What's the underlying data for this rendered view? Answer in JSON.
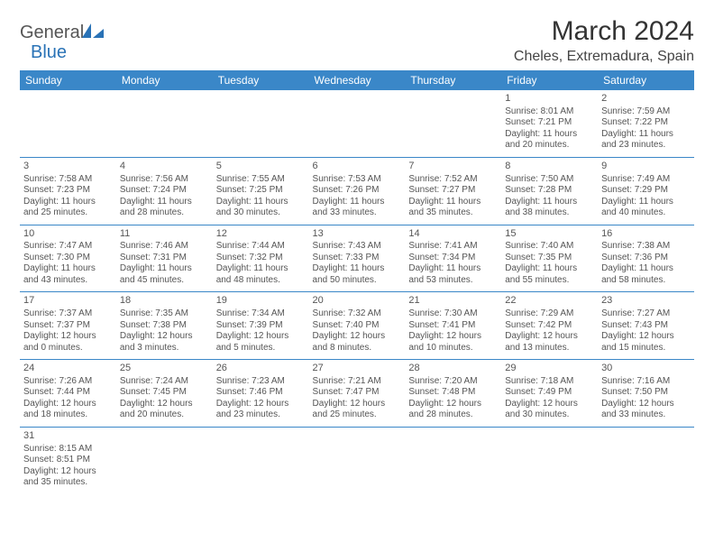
{
  "logo": {
    "text1": "General",
    "text2": "Blue"
  },
  "header": {
    "month": "March 2024",
    "location": "Cheles, Extremadura, Spain"
  },
  "colors": {
    "header_bg": "#3a87c8",
    "rule": "#3a87c8",
    "text": "#555555",
    "title": "#333333"
  },
  "daynames": [
    "Sunday",
    "Monday",
    "Tuesday",
    "Wednesday",
    "Thursday",
    "Friday",
    "Saturday"
  ],
  "weeks": [
    [
      null,
      null,
      null,
      null,
      null,
      {
        "n": "1",
        "sr": "Sunrise: 8:01 AM",
        "ss": "Sunset: 7:21 PM",
        "dl": "Daylight: 11 hours and 20 minutes."
      },
      {
        "n": "2",
        "sr": "Sunrise: 7:59 AM",
        "ss": "Sunset: 7:22 PM",
        "dl": "Daylight: 11 hours and 23 minutes."
      }
    ],
    [
      {
        "n": "3",
        "sr": "Sunrise: 7:58 AM",
        "ss": "Sunset: 7:23 PM",
        "dl": "Daylight: 11 hours and 25 minutes."
      },
      {
        "n": "4",
        "sr": "Sunrise: 7:56 AM",
        "ss": "Sunset: 7:24 PM",
        "dl": "Daylight: 11 hours and 28 minutes."
      },
      {
        "n": "5",
        "sr": "Sunrise: 7:55 AM",
        "ss": "Sunset: 7:25 PM",
        "dl": "Daylight: 11 hours and 30 minutes."
      },
      {
        "n": "6",
        "sr": "Sunrise: 7:53 AM",
        "ss": "Sunset: 7:26 PM",
        "dl": "Daylight: 11 hours and 33 minutes."
      },
      {
        "n": "7",
        "sr": "Sunrise: 7:52 AM",
        "ss": "Sunset: 7:27 PM",
        "dl": "Daylight: 11 hours and 35 minutes."
      },
      {
        "n": "8",
        "sr": "Sunrise: 7:50 AM",
        "ss": "Sunset: 7:28 PM",
        "dl": "Daylight: 11 hours and 38 minutes."
      },
      {
        "n": "9",
        "sr": "Sunrise: 7:49 AM",
        "ss": "Sunset: 7:29 PM",
        "dl": "Daylight: 11 hours and 40 minutes."
      }
    ],
    [
      {
        "n": "10",
        "sr": "Sunrise: 7:47 AM",
        "ss": "Sunset: 7:30 PM",
        "dl": "Daylight: 11 hours and 43 minutes."
      },
      {
        "n": "11",
        "sr": "Sunrise: 7:46 AM",
        "ss": "Sunset: 7:31 PM",
        "dl": "Daylight: 11 hours and 45 minutes."
      },
      {
        "n": "12",
        "sr": "Sunrise: 7:44 AM",
        "ss": "Sunset: 7:32 PM",
        "dl": "Daylight: 11 hours and 48 minutes."
      },
      {
        "n": "13",
        "sr": "Sunrise: 7:43 AM",
        "ss": "Sunset: 7:33 PM",
        "dl": "Daylight: 11 hours and 50 minutes."
      },
      {
        "n": "14",
        "sr": "Sunrise: 7:41 AM",
        "ss": "Sunset: 7:34 PM",
        "dl": "Daylight: 11 hours and 53 minutes."
      },
      {
        "n": "15",
        "sr": "Sunrise: 7:40 AM",
        "ss": "Sunset: 7:35 PM",
        "dl": "Daylight: 11 hours and 55 minutes."
      },
      {
        "n": "16",
        "sr": "Sunrise: 7:38 AM",
        "ss": "Sunset: 7:36 PM",
        "dl": "Daylight: 11 hours and 58 minutes."
      }
    ],
    [
      {
        "n": "17",
        "sr": "Sunrise: 7:37 AM",
        "ss": "Sunset: 7:37 PM",
        "dl": "Daylight: 12 hours and 0 minutes."
      },
      {
        "n": "18",
        "sr": "Sunrise: 7:35 AM",
        "ss": "Sunset: 7:38 PM",
        "dl": "Daylight: 12 hours and 3 minutes."
      },
      {
        "n": "19",
        "sr": "Sunrise: 7:34 AM",
        "ss": "Sunset: 7:39 PM",
        "dl": "Daylight: 12 hours and 5 minutes."
      },
      {
        "n": "20",
        "sr": "Sunrise: 7:32 AM",
        "ss": "Sunset: 7:40 PM",
        "dl": "Daylight: 12 hours and 8 minutes."
      },
      {
        "n": "21",
        "sr": "Sunrise: 7:30 AM",
        "ss": "Sunset: 7:41 PM",
        "dl": "Daylight: 12 hours and 10 minutes."
      },
      {
        "n": "22",
        "sr": "Sunrise: 7:29 AM",
        "ss": "Sunset: 7:42 PM",
        "dl": "Daylight: 12 hours and 13 minutes."
      },
      {
        "n": "23",
        "sr": "Sunrise: 7:27 AM",
        "ss": "Sunset: 7:43 PM",
        "dl": "Daylight: 12 hours and 15 minutes."
      }
    ],
    [
      {
        "n": "24",
        "sr": "Sunrise: 7:26 AM",
        "ss": "Sunset: 7:44 PM",
        "dl": "Daylight: 12 hours and 18 minutes."
      },
      {
        "n": "25",
        "sr": "Sunrise: 7:24 AM",
        "ss": "Sunset: 7:45 PM",
        "dl": "Daylight: 12 hours and 20 minutes."
      },
      {
        "n": "26",
        "sr": "Sunrise: 7:23 AM",
        "ss": "Sunset: 7:46 PM",
        "dl": "Daylight: 12 hours and 23 minutes."
      },
      {
        "n": "27",
        "sr": "Sunrise: 7:21 AM",
        "ss": "Sunset: 7:47 PM",
        "dl": "Daylight: 12 hours and 25 minutes."
      },
      {
        "n": "28",
        "sr": "Sunrise: 7:20 AM",
        "ss": "Sunset: 7:48 PM",
        "dl": "Daylight: 12 hours and 28 minutes."
      },
      {
        "n": "29",
        "sr": "Sunrise: 7:18 AM",
        "ss": "Sunset: 7:49 PM",
        "dl": "Daylight: 12 hours and 30 minutes."
      },
      {
        "n": "30",
        "sr": "Sunrise: 7:16 AM",
        "ss": "Sunset: 7:50 PM",
        "dl": "Daylight: 12 hours and 33 minutes."
      }
    ],
    [
      {
        "n": "31",
        "sr": "Sunrise: 8:15 AM",
        "ss": "Sunset: 8:51 PM",
        "dl": "Daylight: 12 hours and 35 minutes."
      },
      null,
      null,
      null,
      null,
      null,
      null
    ]
  ]
}
